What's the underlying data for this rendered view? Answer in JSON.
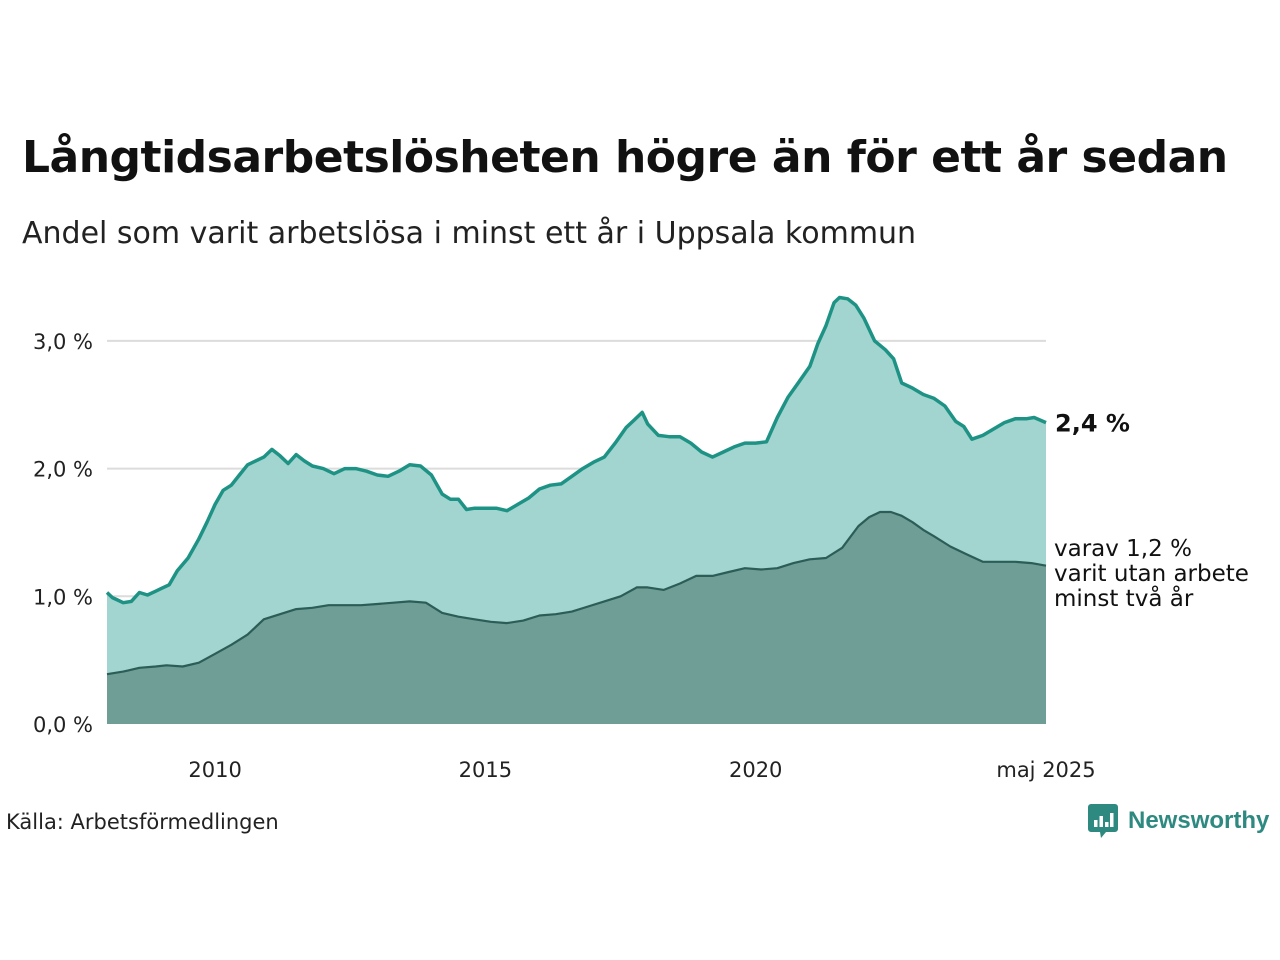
{
  "title": "Långtidsarbetslösheten högre än för ett år sedan",
  "subtitle": "Andel som varit arbetslösa i minst ett år i Uppsala kommun",
  "source": "Källa: Arbetsförmedlingen",
  "brand": "Newsworthy",
  "colors": {
    "series_1yr_line": "#1e9385",
    "series_1yr_fill": "#a2d5cf",
    "series_2yr_line": "#2c5d56",
    "series_2yr_fill": "#6f9e97",
    "grid": "#dcdcdc",
    "brand": "#2e8a80"
  },
  "chart_data": {
    "type": "area",
    "title": "Långtidsarbetslösheten högre än för ett år sedan",
    "subtitle": "Andel som varit arbetslösa i minst ett år i Uppsala kommun",
    "xlim": [
      2008.0,
      2025.37
    ],
    "ylim": [
      0,
      3.3
    ],
    "y_ticks": [
      0,
      1,
      2,
      3
    ],
    "y_tick_labels": [
      "0,0 %",
      "1,0 %",
      "2,0 %",
      "3,0 %"
    ],
    "x_ticks": [
      2010,
      2015,
      2020,
      2025.37
    ],
    "x_tick_labels": [
      "2010",
      "2015",
      "2020",
      "maj 2025"
    ],
    "grid": true,
    "series": [
      {
        "key": "minst_ett_ar",
        "end_label": "2,4 %",
        "points": [
          [
            2008.0,
            1.03
          ],
          [
            2008.1,
            0.99
          ],
          [
            2008.2,
            0.97
          ],
          [
            2008.3,
            0.95
          ],
          [
            2008.45,
            0.96
          ],
          [
            2008.6,
            1.03
          ],
          [
            2008.75,
            1.01
          ],
          [
            2008.9,
            1.04
          ],
          [
            2009.0,
            1.06
          ],
          [
            2009.15,
            1.09
          ],
          [
            2009.3,
            1.2
          ],
          [
            2009.5,
            1.3
          ],
          [
            2009.7,
            1.45
          ],
          [
            2009.85,
            1.58
          ],
          [
            2010.0,
            1.72
          ],
          [
            2010.15,
            1.83
          ],
          [
            2010.3,
            1.87
          ],
          [
            2010.45,
            1.95
          ],
          [
            2010.6,
            2.03
          ],
          [
            2010.75,
            2.06
          ],
          [
            2010.9,
            2.09
          ],
          [
            2011.05,
            2.15
          ],
          [
            2011.2,
            2.1
          ],
          [
            2011.35,
            2.04
          ],
          [
            2011.5,
            2.11
          ],
          [
            2011.65,
            2.06
          ],
          [
            2011.8,
            2.02
          ],
          [
            2012.0,
            2.0
          ],
          [
            2012.2,
            1.96
          ],
          [
            2012.4,
            2.0
          ],
          [
            2012.6,
            2.0
          ],
          [
            2012.8,
            1.98
          ],
          [
            2013.0,
            1.95
          ],
          [
            2013.2,
            1.94
          ],
          [
            2013.4,
            1.98
          ],
          [
            2013.6,
            2.03
          ],
          [
            2013.8,
            2.02
          ],
          [
            2014.0,
            1.95
          ],
          [
            2014.2,
            1.8
          ],
          [
            2014.35,
            1.76
          ],
          [
            2014.5,
            1.76
          ],
          [
            2014.65,
            1.68
          ],
          [
            2014.8,
            1.69
          ],
          [
            2015.0,
            1.69
          ],
          [
            2015.2,
            1.69
          ],
          [
            2015.4,
            1.67
          ],
          [
            2015.6,
            1.72
          ],
          [
            2015.8,
            1.77
          ],
          [
            2016.0,
            1.84
          ],
          [
            2016.2,
            1.87
          ],
          [
            2016.4,
            1.88
          ],
          [
            2016.6,
            1.94
          ],
          [
            2016.8,
            2.0
          ],
          [
            2017.0,
            2.05
          ],
          [
            2017.2,
            2.09
          ],
          [
            2017.4,
            2.2
          ],
          [
            2017.6,
            2.32
          ],
          [
            2017.75,
            2.38
          ],
          [
            2017.9,
            2.44
          ],
          [
            2018.0,
            2.35
          ],
          [
            2018.2,
            2.26
          ],
          [
            2018.4,
            2.25
          ],
          [
            2018.6,
            2.25
          ],
          [
            2018.8,
            2.2
          ],
          [
            2019.0,
            2.13
          ],
          [
            2019.2,
            2.09
          ],
          [
            2019.4,
            2.13
          ],
          [
            2019.6,
            2.17
          ],
          [
            2019.8,
            2.2
          ],
          [
            2020.0,
            2.2
          ],
          [
            2020.2,
            2.21
          ],
          [
            2020.4,
            2.4
          ],
          [
            2020.6,
            2.56
          ],
          [
            2020.8,
            2.68
          ],
          [
            2021.0,
            2.8
          ],
          [
            2021.15,
            2.98
          ],
          [
            2021.3,
            3.12
          ],
          [
            2021.45,
            3.3
          ],
          [
            2021.55,
            3.34
          ],
          [
            2021.7,
            3.33
          ],
          [
            2021.85,
            3.28
          ],
          [
            2022.0,
            3.18
          ],
          [
            2022.2,
            3.0
          ],
          [
            2022.4,
            2.93
          ],
          [
            2022.55,
            2.86
          ],
          [
            2022.7,
            2.67
          ],
          [
            2022.9,
            2.63
          ],
          [
            2023.1,
            2.58
          ],
          [
            2023.3,
            2.55
          ],
          [
            2023.5,
            2.49
          ],
          [
            2023.7,
            2.37
          ],
          [
            2023.85,
            2.33
          ],
          [
            2024.0,
            2.23
          ],
          [
            2024.2,
            2.26
          ],
          [
            2024.4,
            2.31
          ],
          [
            2024.6,
            2.36
          ],
          [
            2024.8,
            2.39
          ],
          [
            2025.0,
            2.39
          ],
          [
            2025.15,
            2.4
          ],
          [
            2025.37,
            2.36
          ]
        ]
      },
      {
        "key": "minst_tva_ar",
        "end_label_lines": [
          "varav 1,2 %",
          "varit utan arbete",
          "minst två år"
        ],
        "points": [
          [
            2008.0,
            0.39
          ],
          [
            2008.3,
            0.41
          ],
          [
            2008.6,
            0.44
          ],
          [
            2008.9,
            0.45
          ],
          [
            2009.1,
            0.46
          ],
          [
            2009.4,
            0.45
          ],
          [
            2009.7,
            0.48
          ],
          [
            2010.0,
            0.55
          ],
          [
            2010.3,
            0.62
          ],
          [
            2010.6,
            0.7
          ],
          [
            2010.9,
            0.82
          ],
          [
            2011.2,
            0.86
          ],
          [
            2011.5,
            0.9
          ],
          [
            2011.8,
            0.91
          ],
          [
            2012.1,
            0.93
          ],
          [
            2012.4,
            0.93
          ],
          [
            2012.7,
            0.93
          ],
          [
            2013.0,
            0.94
          ],
          [
            2013.3,
            0.95
          ],
          [
            2013.6,
            0.96
          ],
          [
            2013.9,
            0.95
          ],
          [
            2014.2,
            0.87
          ],
          [
            2014.5,
            0.84
          ],
          [
            2014.8,
            0.82
          ],
          [
            2015.1,
            0.8
          ],
          [
            2015.4,
            0.79
          ],
          [
            2015.7,
            0.81
          ],
          [
            2016.0,
            0.85
          ],
          [
            2016.3,
            0.86
          ],
          [
            2016.6,
            0.88
          ],
          [
            2016.9,
            0.92
          ],
          [
            2017.2,
            0.96
          ],
          [
            2017.5,
            1.0
          ],
          [
            2017.8,
            1.07
          ],
          [
            2018.0,
            1.07
          ],
          [
            2018.3,
            1.05
          ],
          [
            2018.6,
            1.1
          ],
          [
            2018.9,
            1.16
          ],
          [
            2019.2,
            1.16
          ],
          [
            2019.5,
            1.19
          ],
          [
            2019.8,
            1.22
          ],
          [
            2020.1,
            1.21
          ],
          [
            2020.4,
            1.22
          ],
          [
            2020.7,
            1.26
          ],
          [
            2021.0,
            1.29
          ],
          [
            2021.3,
            1.3
          ],
          [
            2021.6,
            1.38
          ],
          [
            2021.9,
            1.55
          ],
          [
            2022.1,
            1.62
          ],
          [
            2022.3,
            1.66
          ],
          [
            2022.5,
            1.66
          ],
          [
            2022.7,
            1.63
          ],
          [
            2022.9,
            1.58
          ],
          [
            2023.1,
            1.52
          ],
          [
            2023.3,
            1.47
          ],
          [
            2023.6,
            1.39
          ],
          [
            2023.9,
            1.33
          ],
          [
            2024.2,
            1.27
          ],
          [
            2024.5,
            1.27
          ],
          [
            2024.8,
            1.27
          ],
          [
            2025.1,
            1.26
          ],
          [
            2025.37,
            1.24
          ]
        ]
      }
    ]
  }
}
